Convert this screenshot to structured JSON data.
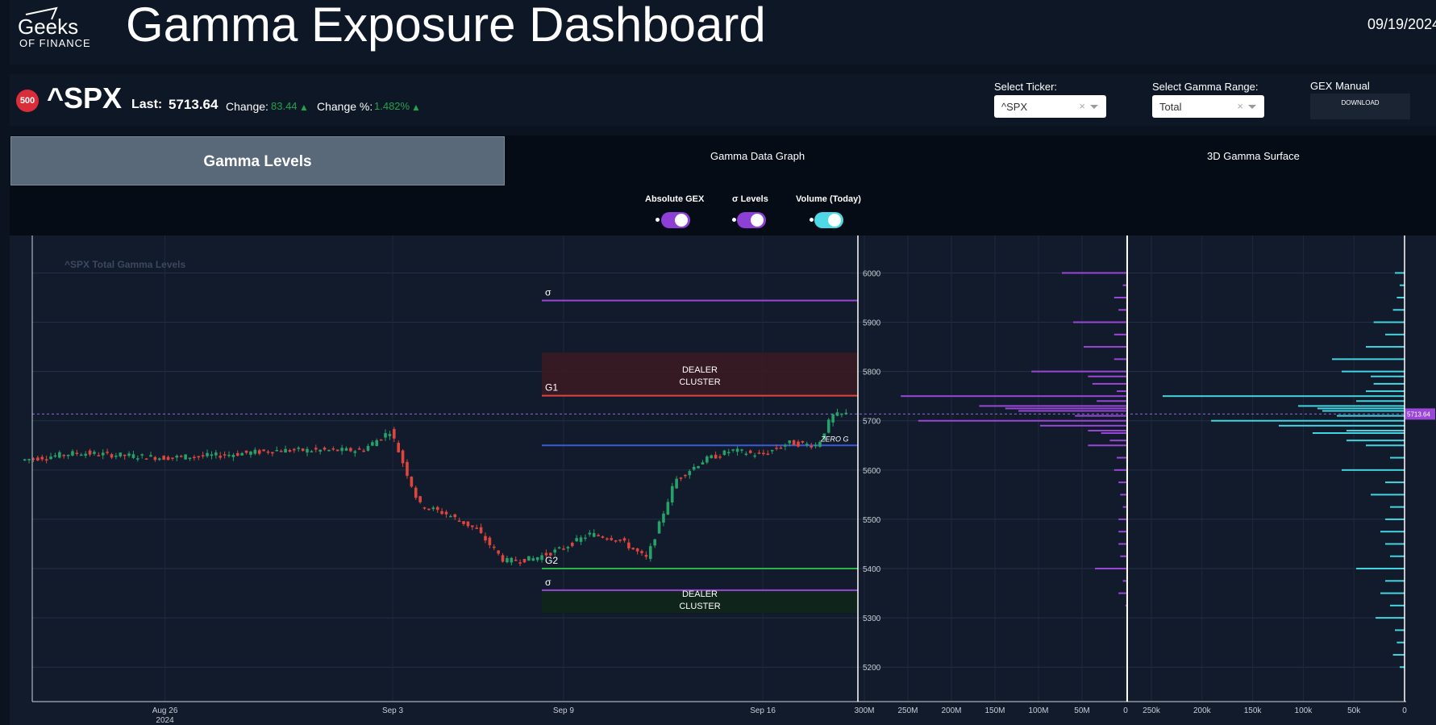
{
  "header": {
    "logo_top": "Geeks",
    "logo_bottom": "OF FINANCE",
    "title": "Gamma Exposure Dashboard",
    "date": "09/19/2024"
  },
  "ticker": {
    "badge": "500",
    "symbol": "^SPX",
    "last_label": "Last:",
    "last_value": "5713.64",
    "change_label": "Change:",
    "change_value": "83.44",
    "change_pct_label": "Change %:",
    "change_pct_value": "1.482%"
  },
  "controls": {
    "ticker_label": "Select Ticker:",
    "ticker_value": "^SPX",
    "range_label": "Select Gamma Range:",
    "range_value": "Total",
    "manual_label": "GEX Manual",
    "download_label": "DOWNLOAD"
  },
  "tabs": [
    {
      "label": "Gamma Levels",
      "active": true
    },
    {
      "label": "Gamma Data Graph",
      "active": false
    },
    {
      "label": "3D Gamma Surface",
      "active": false
    }
  ],
  "toggles": [
    {
      "label": "Absolute GEX",
      "on": true,
      "color": "#8e3fd6"
    },
    {
      "label": "σ Levels",
      "on": true,
      "color": "#8e3fd6"
    },
    {
      "label": "Volume (Today)",
      "on": true,
      "color": "#4fd8e6"
    }
  ],
  "colors": {
    "up": "#26a269",
    "down": "#e0453d",
    "purple": "#9a46d8",
    "cyan": "#44d4e0",
    "g1": "#e0453d",
    "g2": "#2cb24a",
    "zero": "#3a5bd8",
    "badge": "#d92d3a"
  },
  "chart_data": [
    {
      "type": "candlestick",
      "title": "^SPX Total Gamma Levels",
      "x_ticks": [
        {
          "date": "2024-08-26",
          "label": "Aug 26",
          "sublabel": "2024"
        },
        {
          "date": "2024-09-03",
          "label": "Sep 3"
        },
        {
          "date": "2024-09-09",
          "label": "Sep 9"
        },
        {
          "date": "2024-09-16",
          "label": "Sep 16"
        }
      ],
      "x_range": [
        "2024-08-21",
        "2024-09-19"
      ],
      "y_range": [
        5130,
        6040
      ],
      "y_ticks": [
        6000,
        5900,
        5800,
        5700,
        5600,
        5500,
        5400,
        5300,
        5200
      ],
      "close_path": [
        {
          "date": "2024-08-21",
          "close": 5620
        },
        {
          "date": "2024-08-23",
          "close": 5635
        },
        {
          "date": "2024-08-26",
          "close": 5625
        },
        {
          "date": "2024-08-28",
          "close": 5630
        },
        {
          "date": "2024-08-30",
          "close": 5640
        },
        {
          "date": "2024-09-02",
          "close": 5640
        },
        {
          "date": "2024-09-03",
          "close": 5680
        },
        {
          "date": "2024-09-04",
          "close": 5530
        },
        {
          "date": "2024-09-05",
          "close": 5510
        },
        {
          "date": "2024-09-06",
          "close": 5480
        },
        {
          "date": "2024-09-07",
          "close": 5415
        },
        {
          "date": "2024-09-08",
          "close": 5420
        },
        {
          "date": "2024-09-09",
          "close": 5440
        },
        {
          "date": "2024-09-10",
          "close": 5470
        },
        {
          "date": "2024-09-11",
          "close": 5460
        },
        {
          "date": "2024-09-12",
          "close": 5420
        },
        {
          "date": "2024-09-13",
          "close": 5580
        },
        {
          "date": "2024-09-14",
          "close": 5620
        },
        {
          "date": "2024-09-15",
          "close": 5640
        },
        {
          "date": "2024-09-16",
          "close": 5630
        },
        {
          "date": "2024-09-17",
          "close": 5655
        },
        {
          "date": "2024-09-18",
          "close": 5650
        },
        {
          "date": "2024-09-18T12:00",
          "close": 5710
        },
        {
          "date": "2024-09-19",
          "close": 5713.64
        }
      ],
      "last_price": 5713.64,
      "last_price_label": "5713.64",
      "levels": [
        {
          "name": "σ",
          "value": 5944,
          "color": "#9a46d8"
        },
        {
          "name": "G1",
          "value": 5751,
          "color": "#e0453d"
        },
        {
          "name": "ZERO G",
          "value": 5650,
          "color": "#3a5bd8"
        },
        {
          "name": "G2",
          "value": 5400,
          "color": "#2cb24a"
        },
        {
          "name": "σ",
          "value": 5356,
          "color": "#9a46d8"
        }
      ],
      "zones": [
        {
          "label": "DEALER CLUSTER",
          "from": 5751,
          "to": 5838
        },
        {
          "label": "DEALER CLUSTER",
          "from": 5310,
          "to": 5356
        }
      ]
    },
    {
      "type": "bar",
      "orientation": "horizontal",
      "series": "Absolute GEX",
      "x_range": [
        300000000,
        0
      ],
      "x_ticks": [
        "300M",
        "250M",
        "200M",
        "150M",
        "100M",
        "50M",
        "0"
      ],
      "strikes": [
        6000,
        5975,
        5950,
        5925,
        5900,
        5875,
        5850,
        5825,
        5800,
        5790,
        5775,
        5760,
        5750,
        5740,
        5730,
        5725,
        5720,
        5710,
        5700,
        5690,
        5680,
        5675,
        5660,
        5650,
        5625,
        5600,
        5575,
        5550,
        5525,
        5500,
        5475,
        5450,
        5425,
        5400,
        5375,
        5350,
        5325
      ],
      "values": [
        75000000,
        5000000,
        15000000,
        10000000,
        62000000,
        15000000,
        50000000,
        15000000,
        110000000,
        45000000,
        40000000,
        12000000,
        260000000,
        35000000,
        170000000,
        140000000,
        125000000,
        60000000,
        240000000,
        100000000,
        45000000,
        30000000,
        20000000,
        45000000,
        12000000,
        15000000,
        10000000,
        8000000,
        5000000,
        10000000,
        10000000,
        10000000,
        8000000,
        37000000,
        5000000,
        10000000,
        2000000
      ]
    },
    {
      "type": "bar",
      "orientation": "horizontal",
      "series": "Volume (Today)",
      "x_range": [
        270000,
        0
      ],
      "x_ticks": [
        "250k",
        "200k",
        "150k",
        "100k",
        "50k",
        "0"
      ],
      "strikes": [
        6000,
        5975,
        5950,
        5925,
        5900,
        5875,
        5850,
        5825,
        5800,
        5790,
        5775,
        5760,
        5750,
        5740,
        5730,
        5725,
        5720,
        5710,
        5700,
        5690,
        5680,
        5675,
        5660,
        5650,
        5625,
        5600,
        5575,
        5550,
        5525,
        5500,
        5475,
        5450,
        5425,
        5400,
        5375,
        5350,
        5325,
        5300,
        5275,
        5250,
        5225,
        5200
      ],
      "values": [
        10000,
        5000,
        8000,
        12000,
        32000,
        20000,
        40000,
        75000,
        65000,
        35000,
        32000,
        40000,
        250000,
        50000,
        110000,
        90000,
        85000,
        70000,
        200000,
        130000,
        60000,
        95000,
        60000,
        40000,
        15000,
        65000,
        20000,
        35000,
        15000,
        20000,
        25000,
        20000,
        15000,
        50000,
        20000,
        25000,
        15000,
        30000,
        10000,
        8000,
        12000,
        5000
      ]
    }
  ]
}
